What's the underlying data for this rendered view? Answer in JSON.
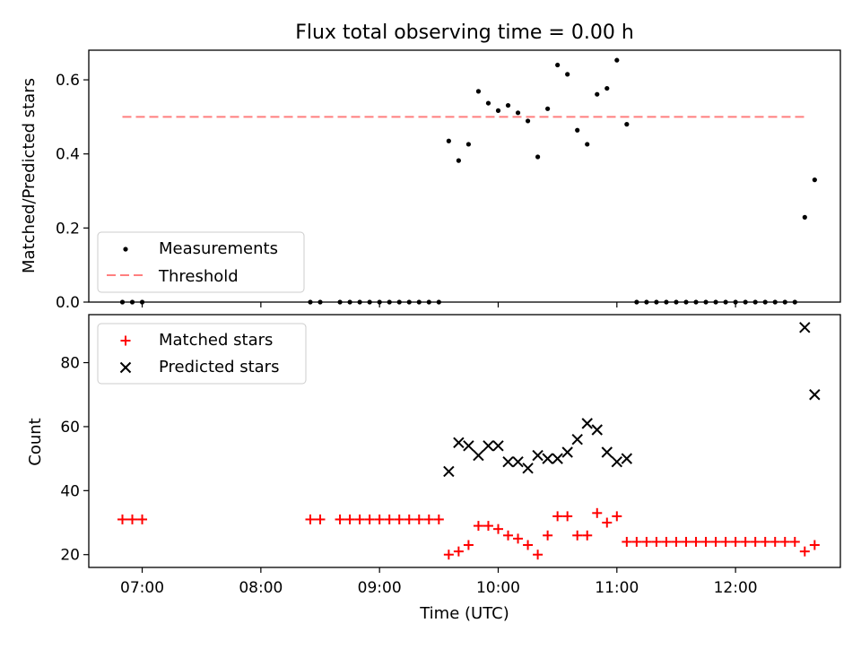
{
  "chart_data": [
    {
      "type": "scatter",
      "title": "Flux total observing time = 0.00 h",
      "xlabel": "",
      "ylabel": "Matched/Predicted stars",
      "ylim": [
        0,
        0.68
      ],
      "xlim": [
        "06:33",
        "12:53"
      ],
      "grid": false,
      "legend_position": "lower-left",
      "yticks": [
        "0.0",
        "0.2",
        "0.4",
        "0.6"
      ],
      "colors": {
        "measurements": "#000000",
        "threshold": "#ff7f7f"
      },
      "series": [
        {
          "name": "Measurements",
          "kind": "points",
          "x": [
            "06:50",
            "06:55",
            "07:00",
            "08:25",
            "08:30",
            "08:40",
            "08:45",
            "08:50",
            "08:55",
            "09:00",
            "09:05",
            "09:10",
            "09:15",
            "09:20",
            "09:25",
            "09:30",
            "09:35",
            "09:40",
            "09:45",
            "09:50",
            "09:55",
            "10:00",
            "10:05",
            "10:10",
            "10:15",
            "10:20",
            "10:25",
            "10:30",
            "10:35",
            "10:40",
            "10:45",
            "10:50",
            "10:55",
            "11:00",
            "11:05",
            "11:10",
            "11:15",
            "11:20",
            "11:25",
            "11:30",
            "11:35",
            "11:40",
            "11:45",
            "11:50",
            "11:55",
            "12:00",
            "12:05",
            "12:10",
            "12:15",
            "12:20",
            "12:25",
            "12:30",
            "12:35",
            "12:40"
          ],
          "y": [
            0,
            0,
            0,
            0,
            0,
            0,
            0,
            0,
            0,
            0,
            0,
            0,
            0,
            0,
            0,
            0,
            0.435,
            0.382,
            0.426,
            0.569,
            0.537,
            0.517,
            0.531,
            0.511,
            0.489,
            0.392,
            0.522,
            0.64,
            0.615,
            0.464,
            0.426,
            0.561,
            0.577,
            0.653,
            0.48,
            0,
            0,
            0,
            0,
            0,
            0,
            0,
            0,
            0,
            0,
            0,
            0,
            0,
            0,
            0,
            0,
            0,
            0.229,
            0.33
          ]
        },
        {
          "name": "Threshold",
          "kind": "dashed-line",
          "x": [
            "06:50",
            "12:35"
          ],
          "y": [
            0.5,
            0.5
          ]
        }
      ]
    },
    {
      "type": "scatter",
      "title": "",
      "xlabel": "Time (UTC)",
      "ylabel": "Count",
      "ylim": [
        16,
        95
      ],
      "xlim": [
        "06:33",
        "12:53"
      ],
      "grid": false,
      "legend_position": "top-left",
      "yticks": [
        "20",
        "40",
        "60",
        "80"
      ],
      "xticks": [
        "07:00",
        "08:00",
        "09:00",
        "10:00",
        "11:00",
        "12:00"
      ],
      "colors": {
        "matched": "#ff0000",
        "predicted": "#000000"
      },
      "series": [
        {
          "name": "Matched stars",
          "marker": "plus",
          "x": [
            "06:50",
            "06:55",
            "07:00",
            "08:25",
            "08:30",
            "08:40",
            "08:45",
            "08:50",
            "08:55",
            "09:00",
            "09:05",
            "09:10",
            "09:15",
            "09:20",
            "09:25",
            "09:30",
            "09:35",
            "09:40",
            "09:45",
            "09:50",
            "09:55",
            "10:00",
            "10:05",
            "10:10",
            "10:15",
            "10:20",
            "10:25",
            "10:30",
            "10:35",
            "10:40",
            "10:45",
            "10:50",
            "10:55",
            "11:00",
            "11:05",
            "11:10",
            "11:15",
            "11:20",
            "11:25",
            "11:30",
            "11:35",
            "11:40",
            "11:45",
            "11:50",
            "11:55",
            "12:00",
            "12:05",
            "12:10",
            "12:15",
            "12:20",
            "12:25",
            "12:30",
            "12:35",
            "12:40"
          ],
          "y": [
            31,
            31,
            31,
            31,
            31,
            31,
            31,
            31,
            31,
            31,
            31,
            31,
            31,
            31,
            31,
            31,
            20,
            21,
            23,
            29,
            29,
            28,
            26,
            25,
            23,
            20,
            26,
            32,
            32,
            26,
            26,
            33,
            30,
            32,
            24,
            24,
            24,
            24,
            24,
            24,
            24,
            24,
            24,
            24,
            24,
            24,
            24,
            24,
            24,
            24,
            24,
            24,
            21,
            23
          ]
        },
        {
          "name": "Predicted stars",
          "marker": "x",
          "x": [
            "09:35",
            "09:40",
            "09:45",
            "09:50",
            "09:55",
            "10:00",
            "10:05",
            "10:10",
            "10:15",
            "10:20",
            "10:25",
            "10:30",
            "10:35",
            "10:40",
            "10:45",
            "10:50",
            "10:55",
            "11:00",
            "11:05",
            "12:35",
            "12:40"
          ],
          "y": [
            46,
            55,
            54,
            51,
            54,
            54,
            49,
            49,
            47,
            51,
            50,
            50,
            52,
            56,
            61,
            59,
            52,
            49,
            50,
            91,
            70
          ]
        }
      ]
    }
  ]
}
